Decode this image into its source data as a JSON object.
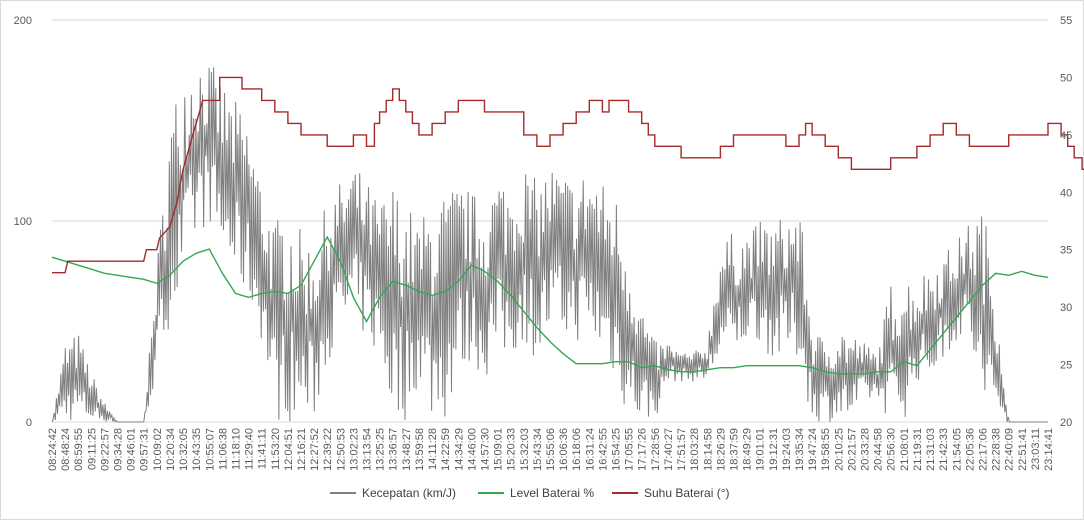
{
  "chart_data": {
    "type": "line",
    "title": "",
    "grid": true,
    "legend_position": "bottom",
    "y_left": {
      "range": [
        0,
        200
      ],
      "ticks": [
        "0",
        "100",
        "200"
      ]
    },
    "y_right": {
      "range": [
        20,
        55
      ],
      "ticks": [
        "20",
        "25",
        "30",
        "35",
        "40",
        "45",
        "50",
        "55"
      ]
    },
    "x_ticks": [
      "08:24:42",
      "08:48:24",
      "08:59:55",
      "09:11:25",
      "09:22:57",
      "09:34:28",
      "09:46:01",
      "09:57:31",
      "10:09:02",
      "10:20:34",
      "10:32:05",
      "10:43:35",
      "10:55:07",
      "11:06:38",
      "11:18:10",
      "11:29:40",
      "11:41:11",
      "11:53:20",
      "12:04:51",
      "12:16:21",
      "12:27:52",
      "12:39:22",
      "12:50:53",
      "13:02:23",
      "13:13:54",
      "13:25:25",
      "13:36:57",
      "13:48:27",
      "13:59:58",
      "14:11:28",
      "14:22:59",
      "14:34:29",
      "14:46:00",
      "14:57:30",
      "15:09:01",
      "15:20:33",
      "15:32:03",
      "15:43:34",
      "15:55:06",
      "16:06:36",
      "16:18:06",
      "16:31:24",
      "16:42:55",
      "16:54:25",
      "17:05:55",
      "17:17:26",
      "17:28:56",
      "17:40:27",
      "17:51:57",
      "18:03:28",
      "18:14:58",
      "18:26:29",
      "18:37:59",
      "18:49:29",
      "19:01:01",
      "19:12:31",
      "19:24:03",
      "19:35:34",
      "19:47:24",
      "19:58:55",
      "20:10:25",
      "20:21:57",
      "20:33:28",
      "20:44:58",
      "20:56:30",
      "21:08:01",
      "21:19:31",
      "21:31:03",
      "21:42:33",
      "21:54:05",
      "22:05:36",
      "22:17:06",
      "22:28:38",
      "22:40:09",
      "22:51:41",
      "23:03:11",
      "23:14:41"
    ],
    "series": [
      {
        "name": "Kecepatan (km/J)",
        "axis": "left",
        "color": "#7f7f7f",
        "envelope": [
          [
            0,
            0,
            0
          ],
          [
            1,
            0,
            40
          ],
          [
            2,
            0,
            45
          ],
          [
            3,
            0,
            25
          ],
          [
            4,
            0,
            10
          ],
          [
            5,
            0,
            0
          ],
          [
            6,
            0,
            0
          ],
          [
            7,
            0,
            0
          ],
          [
            8,
            20,
            80
          ],
          [
            9,
            50,
            150
          ],
          [
            10,
            60,
            180
          ],
          [
            11,
            90,
            185
          ],
          [
            12,
            100,
            180
          ],
          [
            13,
            80,
            170
          ],
          [
            14,
            70,
            160
          ],
          [
            15,
            60,
            150
          ],
          [
            16,
            40,
            120
          ],
          [
            17,
            0,
            100
          ],
          [
            18,
            0,
            110
          ],
          [
            19,
            0,
            95
          ],
          [
            20,
            0,
            90
          ],
          [
            21,
            30,
            110
          ],
          [
            22,
            40,
            120
          ],
          [
            23,
            50,
            130
          ],
          [
            24,
            40,
            120
          ],
          [
            25,
            30,
            110
          ],
          [
            26,
            0,
            120
          ],
          [
            27,
            0,
            110
          ],
          [
            28,
            20,
            100
          ],
          [
            29,
            0,
            110
          ],
          [
            30,
            0,
            115
          ],
          [
            31,
            20,
            120
          ],
          [
            32,
            30,
            115
          ],
          [
            33,
            20,
            110
          ],
          [
            34,
            30,
            125
          ],
          [
            35,
            30,
            120
          ],
          [
            36,
            40,
            130
          ],
          [
            37,
            30,
            120
          ],
          [
            38,
            40,
            130
          ],
          [
            39,
            40,
            125
          ],
          [
            40,
            40,
            120
          ],
          [
            41,
            40,
            130
          ],
          [
            42,
            30,
            120
          ],
          [
            43,
            20,
            115
          ],
          [
            44,
            0,
            90
          ],
          [
            45,
            0,
            60
          ],
          [
            46,
            0,
            40
          ],
          [
            47,
            20,
            40
          ],
          [
            48,
            20,
            35
          ],
          [
            49,
            20,
            35
          ],
          [
            50,
            20,
            40
          ],
          [
            51,
            30,
            90
          ],
          [
            52,
            30,
            95
          ],
          [
            53,
            40,
            95
          ],
          [
            54,
            40,
            100
          ],
          [
            55,
            30,
            100
          ],
          [
            56,
            30,
            105
          ],
          [
            57,
            30,
            110
          ],
          [
            58,
            0,
            50
          ],
          [
            59,
            0,
            40
          ],
          [
            60,
            0,
            50
          ],
          [
            61,
            0,
            45
          ],
          [
            62,
            10,
            40
          ],
          [
            63,
            10,
            35
          ],
          [
            64,
            0,
            70
          ],
          [
            65,
            0,
            75
          ],
          [
            66,
            20,
            70
          ],
          [
            67,
            20,
            80
          ],
          [
            68,
            30,
            85
          ],
          [
            69,
            40,
            90
          ],
          [
            70,
            40,
            100
          ],
          [
            71,
            0,
            110
          ],
          [
            72,
            0,
            70
          ],
          [
            73,
            0,
            0
          ],
          [
            74,
            0,
            0
          ],
          [
            75,
            0,
            0
          ],
          [
            76,
            0,
            0
          ]
        ]
      },
      {
        "name": "Level Baterai %",
        "axis": "left",
        "color": "#32a852",
        "points": [
          [
            0,
            82
          ],
          [
            1,
            80
          ],
          [
            2,
            78
          ],
          [
            3,
            76
          ],
          [
            4,
            74
          ],
          [
            5,
            73
          ],
          [
            6,
            72
          ],
          [
            7,
            71
          ],
          [
            8,
            69
          ],
          [
            9,
            73
          ],
          [
            10,
            80
          ],
          [
            11,
            84
          ],
          [
            12,
            86
          ],
          [
            13,
            74
          ],
          [
            14,
            64
          ],
          [
            15,
            62
          ],
          [
            16,
            64
          ],
          [
            17,
            65
          ],
          [
            18,
            64
          ],
          [
            19,
            68
          ],
          [
            20,
            80
          ],
          [
            21,
            92
          ],
          [
            22,
            80
          ],
          [
            23,
            62
          ],
          [
            24,
            50
          ],
          [
            25,
            62
          ],
          [
            26,
            70
          ],
          [
            27,
            68
          ],
          [
            28,
            65
          ],
          [
            29,
            63
          ],
          [
            30,
            65
          ],
          [
            31,
            70
          ],
          [
            32,
            78
          ],
          [
            33,
            75
          ],
          [
            34,
            70
          ],
          [
            35,
            63
          ],
          [
            36,
            55
          ],
          [
            37,
            47
          ],
          [
            38,
            40
          ],
          [
            39,
            34
          ],
          [
            40,
            29
          ],
          [
            41,
            29
          ],
          [
            42,
            29
          ],
          [
            43,
            30
          ],
          [
            44,
            30
          ],
          [
            45,
            27
          ],
          [
            46,
            28
          ],
          [
            47,
            26
          ],
          [
            48,
            25
          ],
          [
            49,
            25
          ],
          [
            50,
            26
          ],
          [
            51,
            27
          ],
          [
            52,
            27
          ],
          [
            53,
            28
          ],
          [
            54,
            28
          ],
          [
            55,
            28
          ],
          [
            56,
            28
          ],
          [
            57,
            28
          ],
          [
            58,
            27
          ],
          [
            59,
            25
          ],
          [
            60,
            24
          ],
          [
            61,
            24
          ],
          [
            62,
            24
          ],
          [
            63,
            25
          ],
          [
            64,
            25
          ],
          [
            65,
            30
          ],
          [
            66,
            28
          ],
          [
            67,
            36
          ],
          [
            68,
            44
          ],
          [
            69,
            52
          ],
          [
            70,
            60
          ],
          [
            71,
            68
          ],
          [
            72,
            74
          ],
          [
            73,
            73
          ],
          [
            74,
            75
          ],
          [
            75,
            73
          ],
          [
            76,
            72
          ]
        ]
      },
      {
        "name": "Suhu Baterai (°)",
        "axis": "right",
        "color": "#a52a2a",
        "points": [
          [
            0,
            33
          ],
          [
            1,
            33
          ],
          [
            1.2,
            34
          ],
          [
            4,
            34
          ],
          [
            7,
            34
          ],
          [
            7.2,
            35
          ],
          [
            8,
            35
          ],
          [
            8.2,
            36
          ],
          [
            9,
            37
          ],
          [
            9.5,
            39
          ],
          [
            10,
            42
          ],
          [
            10.5,
            44
          ],
          [
            11,
            46
          ],
          [
            11.5,
            48
          ],
          [
            12,
            48
          ],
          [
            12.8,
            48
          ],
          [
            12.8,
            50
          ],
          [
            14,
            50
          ],
          [
            14.5,
            50
          ],
          [
            14.5,
            49
          ],
          [
            16,
            49
          ],
          [
            16,
            48
          ],
          [
            17,
            48
          ],
          [
            17,
            47
          ],
          [
            18,
            47
          ],
          [
            18,
            46
          ],
          [
            19,
            46
          ],
          [
            19,
            45
          ],
          [
            21,
            45
          ],
          [
            21,
            44
          ],
          [
            23,
            44
          ],
          [
            23,
            45
          ],
          [
            24,
            45
          ],
          [
            24,
            44
          ],
          [
            24.6,
            44
          ],
          [
            24.6,
            46
          ],
          [
            25,
            46
          ],
          [
            25,
            47
          ],
          [
            25.5,
            47
          ],
          [
            25.5,
            48
          ],
          [
            26,
            48
          ],
          [
            26,
            49
          ],
          [
            26.5,
            49
          ],
          [
            26.5,
            48
          ],
          [
            27,
            48
          ],
          [
            27,
            47
          ],
          [
            27.5,
            47
          ],
          [
            27.5,
            46
          ],
          [
            28,
            46
          ],
          [
            28,
            45
          ],
          [
            29,
            45
          ],
          [
            29,
            46
          ],
          [
            30,
            46
          ],
          [
            30,
            47
          ],
          [
            31,
            47
          ],
          [
            31,
            48
          ],
          [
            33,
            48
          ],
          [
            33,
            47
          ],
          [
            36,
            47
          ],
          [
            36,
            45
          ],
          [
            37,
            45
          ],
          [
            37,
            44
          ],
          [
            38,
            44
          ],
          [
            38,
            45
          ],
          [
            39,
            45
          ],
          [
            39,
            46
          ],
          [
            40,
            46
          ],
          [
            40,
            47
          ],
          [
            41,
            47
          ],
          [
            41,
            48
          ],
          [
            42,
            48
          ],
          [
            42,
            47
          ],
          [
            42.5,
            47
          ],
          [
            42.5,
            48
          ],
          [
            44,
            48
          ],
          [
            44,
            47
          ],
          [
            45,
            47
          ],
          [
            45,
            46
          ],
          [
            45.5,
            46
          ],
          [
            45.5,
            45
          ],
          [
            46,
            45
          ],
          [
            46,
            44
          ],
          [
            48,
            44
          ],
          [
            48,
            43
          ],
          [
            51,
            43
          ],
          [
            51,
            44
          ],
          [
            52,
            44
          ],
          [
            52,
            45
          ],
          [
            56,
            45
          ],
          [
            56,
            44
          ],
          [
            57,
            44
          ],
          [
            57,
            45
          ],
          [
            57.5,
            45
          ],
          [
            57.5,
            46
          ],
          [
            58,
            46
          ],
          [
            58,
            45
          ],
          [
            59,
            45
          ],
          [
            59,
            44
          ],
          [
            60,
            44
          ],
          [
            60,
            43
          ],
          [
            61,
            43
          ],
          [
            61,
            42
          ],
          [
            64,
            42
          ],
          [
            64,
            43
          ],
          [
            66,
            43
          ],
          [
            66,
            44
          ],
          [
            67,
            44
          ],
          [
            67,
            45
          ],
          [
            68,
            45
          ],
          [
            68,
            46
          ],
          [
            69,
            46
          ],
          [
            69,
            45
          ],
          [
            70,
            45
          ],
          [
            70,
            44
          ],
          [
            73,
            44
          ],
          [
            73,
            45
          ],
          [
            76,
            45
          ],
          [
            76,
            46
          ],
          [
            77,
            46
          ],
          [
            77,
            45
          ],
          [
            77.5,
            45
          ],
          [
            77.5,
            44
          ],
          [
            78,
            44
          ],
          [
            78,
            43
          ],
          [
            78.6,
            43
          ],
          [
            78.6,
            42
          ],
          [
            79.2,
            42
          ],
          [
            79.2,
            41
          ],
          [
            79.8,
            41
          ],
          [
            79.8,
            40
          ],
          [
            80.4,
            40
          ],
          [
            80.4,
            39
          ],
          [
            81,
            39
          ]
        ]
      }
    ]
  }
}
